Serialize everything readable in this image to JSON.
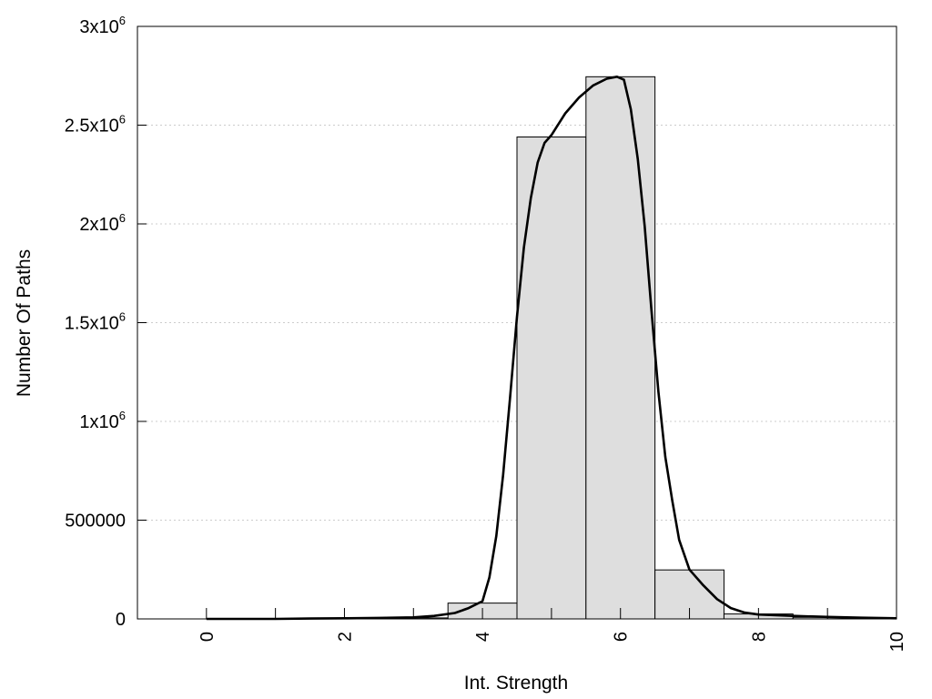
{
  "chart_data": {
    "type": "bar",
    "xlabel": "Int. Strength",
    "ylabel": "Number Of Paths",
    "xlim": [
      -1,
      10
    ],
    "ylim": [
      0,
      3000000
    ],
    "grid": true,
    "x_ticks": [
      {
        "value": 0,
        "label": "0"
      },
      {
        "value": 2,
        "label": "2"
      },
      {
        "value": 4,
        "label": "4"
      },
      {
        "value": 6,
        "label": "6"
      },
      {
        "value": 8,
        "label": "8"
      },
      {
        "value": 10,
        "label": "10"
      }
    ],
    "x_minor_ticks": [
      1,
      3,
      5,
      7,
      9
    ],
    "y_ticks": [
      {
        "value": 0,
        "base": "0",
        "exp": ""
      },
      {
        "value": 500000,
        "base": "500000",
        "exp": ""
      },
      {
        "value": 1000000,
        "base": "1x10",
        "exp": "6"
      },
      {
        "value": 1500000,
        "base": "1.5x10",
        "exp": "6"
      },
      {
        "value": 2000000,
        "base": "2x10",
        "exp": "6"
      },
      {
        "value": 2500000,
        "base": "2.5x10",
        "exp": "6"
      },
      {
        "value": 3000000,
        "base": "3x10",
        "exp": "6"
      }
    ],
    "histogram": {
      "bin_width": 1,
      "fill": "#dedede",
      "stroke": "#000000",
      "bins": [
        {
          "x": 0,
          "value": 0
        },
        {
          "x": 1,
          "value": 0
        },
        {
          "x": 2,
          "value": 3000
        },
        {
          "x": 3,
          "value": 5000
        },
        {
          "x": 4,
          "value": 80000
        },
        {
          "x": 5,
          "value": 2440000
        },
        {
          "x": 6,
          "value": 2745000
        },
        {
          "x": 7,
          "value": 248000
        },
        {
          "x": 8,
          "value": 25000
        },
        {
          "x": 9,
          "value": 8000
        }
      ]
    },
    "curve": {
      "color": "#000000",
      "x": [
        0,
        1,
        1.5,
        2,
        2.5,
        3,
        3.3,
        3.6,
        3.8,
        4.0,
        4.1,
        4.2,
        4.3,
        4.4,
        4.5,
        4.6,
        4.7,
        4.8,
        4.9,
        5.0,
        5.2,
        5.4,
        5.6,
        5.8,
        5.95,
        6.05,
        6.15,
        6.25,
        6.35,
        6.45,
        6.55,
        6.65,
        6.75,
        6.85,
        7.0,
        7.2,
        7.4,
        7.6,
        7.8,
        8.0,
        8.5,
        9.0,
        9.5,
        10.0
      ],
      "y": [
        0,
        0,
        2000,
        3000,
        5000,
        8000,
        15000,
        30000,
        55000,
        90000,
        210000,
        420000,
        730000,
        1120000,
        1530000,
        1880000,
        2130000,
        2310000,
        2410000,
        2450000,
        2560000,
        2640000,
        2700000,
        2735000,
        2745000,
        2730000,
        2580000,
        2330000,
        1990000,
        1560000,
        1150000,
        820000,
        600000,
        400000,
        250000,
        170000,
        100000,
        55000,
        32000,
        22000,
        15000,
        10000,
        6000,
        3000
      ]
    }
  }
}
